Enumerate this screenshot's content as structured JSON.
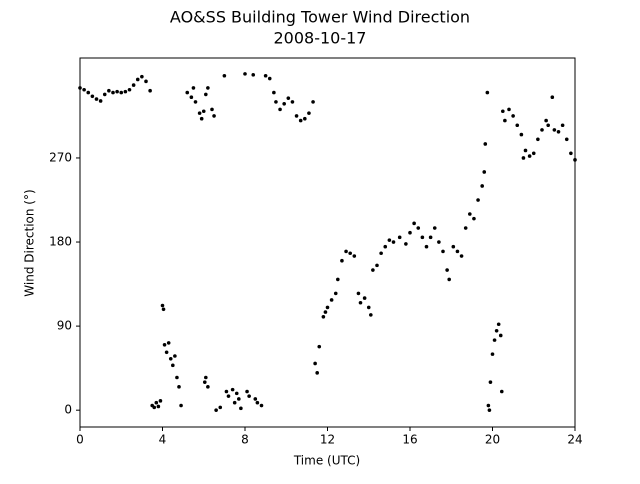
{
  "chart_data": {
    "type": "scatter",
    "title": "AO&SS Building Tower Wind Direction",
    "subtitle": "2008-10-17",
    "x_label": "Time (UTC)",
    "y_label": "Wind Direction (°)",
    "color": "#000000",
    "xlim": [
      0,
      24
    ],
    "ylim": [
      -18,
      377
    ],
    "xticks": [
      0,
      4,
      8,
      12,
      16,
      20,
      24
    ],
    "yticks": [
      0,
      90,
      180,
      270
    ],
    "x": [
      0.0,
      0.2,
      0.4,
      0.6,
      0.8,
      1.0,
      1.2,
      1.4,
      1.6,
      1.8,
      2.0,
      2.2,
      2.4,
      2.6,
      2.8,
      3.0,
      3.2,
      3.4,
      3.5,
      3.6,
      3.7,
      3.8,
      3.9,
      4.0,
      4.05,
      4.1,
      4.2,
      4.3,
      4.4,
      4.5,
      4.6,
      4.7,
      4.8,
      4.9,
      5.2,
      5.4,
      5.5,
      5.6,
      5.8,
      5.9,
      6.0,
      6.05,
      6.1,
      6.1,
      6.2,
      6.2,
      6.4,
      6.5,
      6.6,
      6.8,
      7.0,
      7.1,
      7.2,
      7.4,
      7.5,
      7.6,
      7.7,
      7.8,
      8.0,
      8.1,
      8.2,
      8.4,
      8.5,
      8.6,
      8.8,
      9.0,
      9.2,
      9.4,
      9.5,
      9.7,
      9.9,
      10.1,
      10.3,
      10.5,
      10.7,
      10.9,
      11.1,
      11.3,
      11.4,
      11.5,
      11.6,
      11.8,
      11.9,
      12.0,
      12.2,
      12.4,
      12.5,
      12.7,
      12.9,
      13.1,
      13.3,
      13.5,
      13.6,
      13.8,
      14.0,
      14.1,
      14.2,
      14.4,
      14.6,
      14.8,
      15.0,
      15.2,
      15.5,
      15.8,
      16.0,
      16.2,
      16.4,
      16.6,
      16.8,
      17.0,
      17.2,
      17.4,
      17.6,
      17.8,
      17.9,
      18.1,
      18.3,
      18.5,
      18.7,
      18.9,
      19.1,
      19.3,
      19.5,
      19.6,
      19.65,
      19.75,
      19.8,
      19.85,
      19.9,
      20.0,
      20.1,
      20.2,
      20.3,
      20.4,
      20.45,
      20.5,
      20.6,
      20.8,
      21.0,
      21.2,
      21.4,
      21.5,
      21.6,
      21.8,
      22.0,
      22.2,
      22.4,
      22.6,
      22.7,
      22.9,
      23.0,
      23.2,
      23.4,
      23.6,
      23.8,
      24.0
    ],
    "values": [
      345,
      343,
      340,
      336,
      333,
      331,
      338,
      342,
      340,
      341,
      340,
      341,
      343,
      348,
      354,
      357,
      352,
      342,
      5,
      3,
      8,
      4,
      10,
      112,
      108,
      70,
      62,
      72,
      55,
      48,
      58,
      35,
      25,
      5,
      340,
      335,
      345,
      330,
      318,
      312,
      320,
      30,
      338,
      35,
      345,
      25,
      322,
      315,
      0,
      3,
      358,
      20,
      15,
      22,
      8,
      18,
      12,
      2,
      360,
      20,
      15,
      359,
      12,
      8,
      5,
      358,
      355,
      340,
      330,
      322,
      328,
      334,
      330,
      315,
      310,
      312,
      318,
      330,
      50,
      40,
      68,
      100,
      105,
      110,
      118,
      125,
      140,
      160,
      170,
      168,
      165,
      125,
      115,
      120,
      110,
      102,
      150,
      155,
      168,
      175,
      182,
      180,
      185,
      178,
      190,
      200,
      195,
      185,
      175,
      185,
      195,
      180,
      170,
      150,
      140,
      175,
      170,
      165,
      195,
      210,
      205,
      225,
      240,
      255,
      285,
      340,
      5,
      0,
      30,
      60,
      75,
      85,
      92,
      80,
      20,
      320,
      310,
      322,
      315,
      305,
      295,
      270,
      278,
      272,
      275,
      290,
      300,
      310,
      305,
      335,
      300,
      298,
      305,
      290,
      275,
      268
    ]
  }
}
